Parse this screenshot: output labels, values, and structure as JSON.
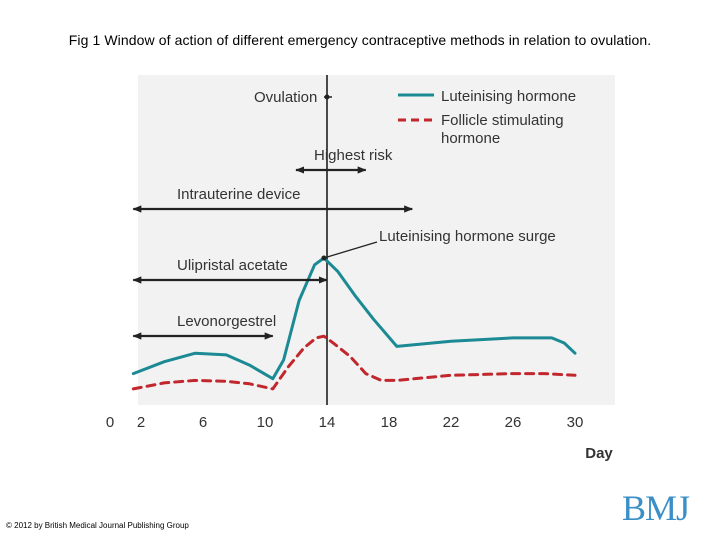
{
  "slide_title": "Fig 1 Window of action of different emergency contraceptive methods in relation to ovulation.",
  "copyright": "© 2012 by British Medical Journal Publishing Group",
  "logo_text": "BMJ",
  "colors": {
    "lh": "#1b8a94",
    "fsh": "#c1272d",
    "arrows": "#222222",
    "background": "#f2f2f2"
  },
  "chart_data": {
    "type": "line",
    "xlabel": "Day",
    "ylabel": "",
    "xlim": [
      0,
      30
    ],
    "ylim": [
      0,
      100
    ],
    "x_ticks": [
      0,
      2,
      6,
      10,
      14,
      18,
      22,
      26,
      30
    ],
    "grid": false,
    "legend_position": "top-right",
    "series": [
      {
        "name": "Luteinising hormone",
        "style": "solid",
        "x": [
          1.5,
          3.5,
          5.5,
          7.5,
          9,
          10.5,
          11.2,
          12.2,
          13.2,
          13.8,
          14.7,
          15.8,
          17,
          18.5,
          22,
          26,
          28.5,
          29.3,
          30
        ],
        "y": [
          12,
          19,
          24,
          23,
          17,
          9,
          20,
          55,
          76,
          80,
          72,
          58,
          44,
          28,
          31,
          33,
          33,
          30,
          24
        ]
      },
      {
        "name": "Follicle stimulating hormone",
        "style": "dashed",
        "x": [
          1.5,
          3.5,
          5.5,
          7.5,
          9,
          10.5,
          11.5,
          12.5,
          13.3,
          13.8,
          14.4,
          15.5,
          16.5,
          17.5,
          18.5,
          22,
          26,
          28,
          30
        ],
        "y": [
          3,
          6.5,
          8,
          7.5,
          6,
          3,
          16,
          27,
          33,
          34,
          30,
          22,
          12,
          8,
          8,
          11,
          12,
          12,
          11
        ]
      }
    ],
    "ovulation_label": "Ovulation",
    "ovulation_day": 14,
    "surge_label": "Luteinising hormone surge",
    "surge_day": 13.8,
    "windows": [
      {
        "label": "Highest risk",
        "start_day": 12,
        "end_day": 16.5
      },
      {
        "label": "Intrauterine device",
        "start_day": 1.5,
        "end_day": 19.5
      },
      {
        "label": "Ulipristal acetate",
        "start_day": 1.5,
        "end_day": 14
      },
      {
        "label": "Levonorgestrel",
        "start_day": 1.5,
        "end_day": 10.5
      }
    ]
  }
}
